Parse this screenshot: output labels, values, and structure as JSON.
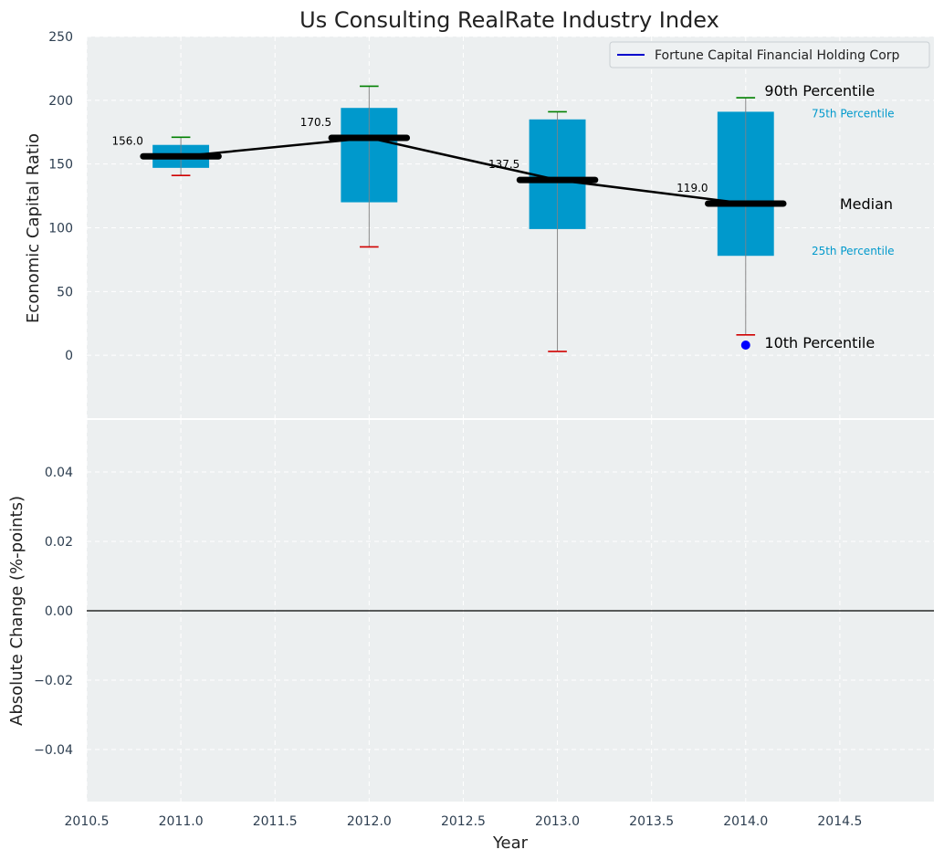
{
  "chart_data": {
    "title": "Us Consulting RealRate Industry Index",
    "panels": [
      {
        "type": "box",
        "ylabel": "Economic Capital Ratio",
        "yticks": [
          0,
          50,
          100,
          150,
          200,
          250
        ],
        "ylim": [
          -50,
          250
        ],
        "grid": true,
        "legend": {
          "placement": "top-right",
          "entries": [
            "Fortune Capital Financial Holding Corp"
          ]
        },
        "years": [
          2011,
          2012,
          2013,
          2014
        ],
        "boxes": [
          {
            "x": 2011,
            "p10": 141,
            "q1": 147,
            "median": 156.0,
            "q3": 165,
            "p90": 171
          },
          {
            "x": 2012,
            "p10": 85,
            "q1": 120,
            "median": 170.5,
            "q3": 194,
            "p90": 211
          },
          {
            "x": 2013,
            "p10": 3,
            "q1": 99,
            "median": 137.5,
            "q3": 185,
            "p90": 191
          },
          {
            "x": 2014,
            "p10": 16,
            "q1": 78,
            "median": 119.0,
            "q3": 191,
            "p90": 202
          }
        ],
        "median_labels": [
          "156.0",
          "170.5",
          "137.5",
          "119.0"
        ],
        "company_points": [
          {
            "x": 2014,
            "y": 8
          }
        ],
        "annotations": {
          "p90": "90th Percentile",
          "q3": "75th Percentile",
          "median": "Median",
          "q1": "25th Percentile",
          "p10": "10th Percentile"
        }
      },
      {
        "type": "line",
        "ylabel": "Absolute Change (%-points)",
        "yticks": [
          "0.04",
          "0.02",
          "0.00",
          "−0.02",
          "−0.04"
        ],
        "ytick_values": [
          0.04,
          0.02,
          0.0,
          -0.02,
          -0.04
        ],
        "ylim": [
          -0.055,
          0.055
        ],
        "grid": true,
        "hline": 0
      }
    ],
    "xlabel": "Year",
    "xticks": [
      "2010.5",
      "2011.0",
      "2011.5",
      "2012.0",
      "2012.5",
      "2013.0",
      "2013.5",
      "2014.0",
      "2014.5"
    ],
    "xtick_values": [
      2010.5,
      2011.0,
      2011.5,
      2012.0,
      2012.5,
      2013.0,
      2013.5,
      2014.0,
      2014.5
    ],
    "xlim": [
      2010.5,
      2015.0
    ],
    "colors": {
      "box": "#0099cc",
      "median": "#000000",
      "p90_cap": "#008000",
      "p10_cap": "#d00000",
      "company": "#0000ff",
      "annotation_accent": "#0099cc",
      "background": "#eceff0"
    }
  }
}
